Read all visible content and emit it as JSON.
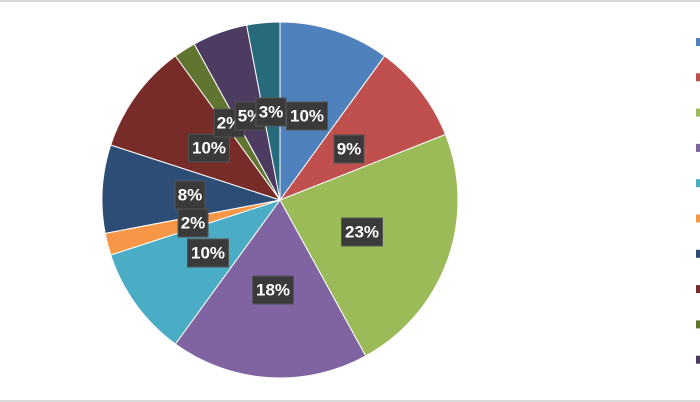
{
  "chart_data": {
    "type": "pie",
    "categories": [
      null,
      null,
      null,
      null,
      null,
      null,
      null,
      null,
      null,
      null,
      null
    ],
    "values": [
      10,
      9,
      23,
      18,
      10,
      2,
      8,
      10,
      2,
      5,
      3
    ],
    "value_labels": [
      "10%",
      "9%",
      "23%",
      "18%",
      "10%",
      "2%",
      "8%",
      "10%",
      "2%",
      "5%",
      "3%"
    ],
    "colors": [
      "#4f81bd",
      "#c0504d",
      "#9bbb59",
      "#8064a2",
      "#4bacc6",
      "#f79646",
      "#2c4d75",
      "#772c2a",
      "#5f7530",
      "#4d3b62",
      "#276a7c"
    ],
    "legend": "right"
  }
}
